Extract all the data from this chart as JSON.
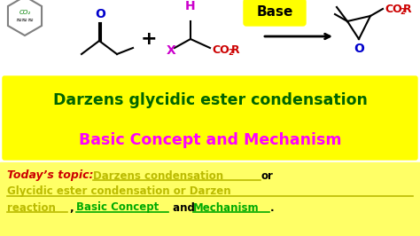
{
  "bg_color": "#ffffff",
  "yellow_box_bg": "#ffff00",
  "title_line1": "Darzens glycidic ester condensation",
  "title_line1_color": "#006400",
  "title_line2": "Basic Concept and Mechanism",
  "title_line2_color": "#ff00ff",
  "today_label": "Today’s topic:",
  "today_color": "#cc0000",
  "yellow_text_color": "#bbbb00",
  "green_color": "#00aa00",
  "blue_color": "#0000cc",
  "magenta_color": "#cc00cc",
  "red_color": "#cc0000"
}
